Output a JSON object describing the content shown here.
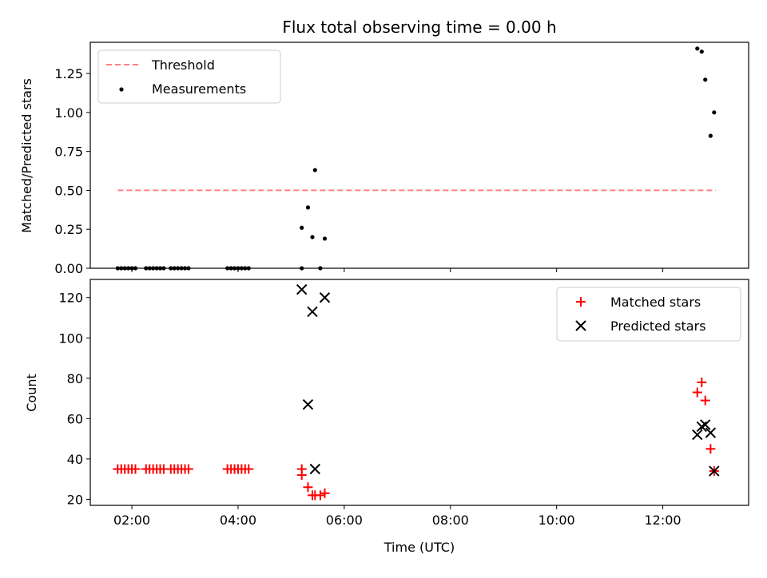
{
  "chart_data": {
    "type": "scatter",
    "title": "Flux total observing time = 0.00 h",
    "xlabel": "Time (UTC)",
    "x_unit": "hours UTC",
    "xlim": [
      "01:13",
      "13:37"
    ],
    "x_ticks": [
      "02:00",
      "04:00",
      "06:00",
      "08:00",
      "10:00",
      "12:00"
    ],
    "panels": [
      {
        "ylabel": "Matched/Predicted stars",
        "ylim": [
          0,
          1.45
        ],
        "y_ticks": [
          "0.00",
          "0.25",
          "0.50",
          "0.75",
          "1.00",
          "1.25"
        ],
        "legend_position": "upper-left",
        "lines": [
          {
            "name": "Threshold",
            "color": "#ff8080",
            "style": "dashed",
            "x": [
              "01:44",
              "13:00"
            ],
            "y": [
              0.5,
              0.5
            ]
          }
        ],
        "series": [
          {
            "name": "Measurements",
            "marker": "dot",
            "color": "#000000",
            "points": [
              [
                "01:44",
                0.0
              ],
              [
                "01:48",
                0.0
              ],
              [
                "01:52",
                0.0
              ],
              [
                "01:56",
                0.0
              ],
              [
                "02:00",
                0.0
              ],
              [
                "02:04",
                0.0
              ],
              [
                "02:16",
                0.0
              ],
              [
                "02:20",
                0.0
              ],
              [
                "02:24",
                0.0
              ],
              [
                "02:28",
                0.0
              ],
              [
                "02:32",
                0.0
              ],
              [
                "02:36",
                0.0
              ],
              [
                "02:44",
                0.0
              ],
              [
                "02:48",
                0.0
              ],
              [
                "02:52",
                0.0
              ],
              [
                "02:56",
                0.0
              ],
              [
                "03:00",
                0.0
              ],
              [
                "03:04",
                0.0
              ],
              [
                "03:48",
                0.0
              ],
              [
                "03:52",
                0.0
              ],
              [
                "03:56",
                0.0
              ],
              [
                "04:00",
                0.0
              ],
              [
                "04:04",
                0.0
              ],
              [
                "04:08",
                0.0
              ],
              [
                "04:12",
                0.0
              ],
              [
                "05:12",
                0.0
              ],
              [
                "05:12",
                0.26
              ],
              [
                "05:19",
                0.39
              ],
              [
                "05:24",
                0.2
              ],
              [
                "05:27",
                0.63
              ],
              [
                "05:33",
                0.0
              ],
              [
                "05:38",
                0.19
              ],
              [
                "12:39",
                1.41
              ],
              [
                "12:44",
                1.39
              ],
              [
                "12:48",
                1.21
              ],
              [
                "12:54",
                0.85
              ],
              [
                "12:58",
                1.0
              ]
            ]
          }
        ]
      },
      {
        "ylabel": "Count",
        "ylim": [
          17,
          129
        ],
        "y_ticks": [
          "20",
          "40",
          "60",
          "80",
          "100",
          "120"
        ],
        "legend_position": "upper-right",
        "series": [
          {
            "name": "Matched stars",
            "marker": "plus",
            "color": "#ff0000",
            "points": [
              [
                "01:44",
                35
              ],
              [
                "01:48",
                35
              ],
              [
                "01:52",
                35
              ],
              [
                "01:56",
                35
              ],
              [
                "02:00",
                35
              ],
              [
                "02:04",
                35
              ],
              [
                "02:16",
                35
              ],
              [
                "02:20",
                35
              ],
              [
                "02:24",
                35
              ],
              [
                "02:28",
                35
              ],
              [
                "02:32",
                35
              ],
              [
                "02:36",
                35
              ],
              [
                "02:44",
                35
              ],
              [
                "02:48",
                35
              ],
              [
                "02:52",
                35
              ],
              [
                "02:56",
                35
              ],
              [
                "03:00",
                35
              ],
              [
                "03:04",
                35
              ],
              [
                "03:48",
                35
              ],
              [
                "03:52",
                35
              ],
              [
                "03:56",
                35
              ],
              [
                "04:00",
                35
              ],
              [
                "04:04",
                35
              ],
              [
                "04:08",
                35
              ],
              [
                "04:12",
                35
              ],
              [
                "05:12",
                35
              ],
              [
                "05:12",
                32
              ],
              [
                "05:19",
                26
              ],
              [
                "05:24",
                22
              ],
              [
                "05:27",
                22
              ],
              [
                "05:33",
                22
              ],
              [
                "05:38",
                23
              ],
              [
                "12:39",
                73
              ],
              [
                "12:44",
                78
              ],
              [
                "12:48",
                69
              ],
              [
                "12:54",
                45
              ],
              [
                "12:58",
                34
              ]
            ]
          },
          {
            "name": "Predicted stars",
            "marker": "x",
            "color": "#000000",
            "points": [
              [
                "05:12",
                124
              ],
              [
                "05:19",
                67
              ],
              [
                "05:24",
                113
              ],
              [
                "05:27",
                35
              ],
              [
                "05:38",
                120
              ],
              [
                "12:39",
                52
              ],
              [
                "12:44",
                56
              ],
              [
                "12:48",
                57
              ],
              [
                "12:54",
                53
              ],
              [
                "12:58",
                34
              ]
            ]
          }
        ]
      }
    ]
  }
}
